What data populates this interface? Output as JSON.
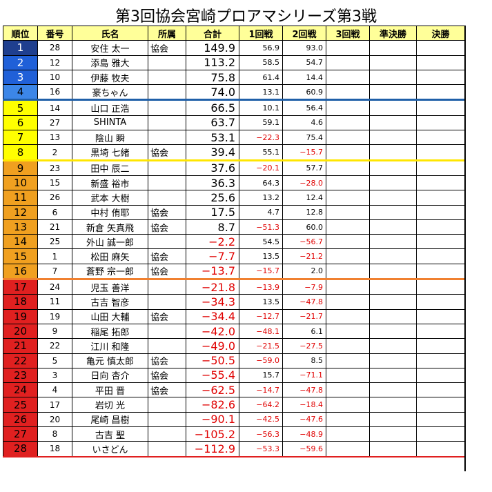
{
  "title": "第3回協会宮崎プロアマシリーズ第3戦",
  "headers": [
    "順位",
    "番号",
    "氏名",
    "所属",
    "合計",
    "1回戦",
    "2回戦",
    "3回戦",
    "準決勝",
    "決勝"
  ],
  "colors": {
    "rank_navy": "#1f3f8f",
    "rank_blue": "#2060d8",
    "rank_lightblue": "#3c86e8",
    "rank_yellow": "#ffff00",
    "rank_orange": "#f0a020",
    "rank_red": "#e02020",
    "negative_text": "#e00000",
    "header_bg": "#ffff99"
  },
  "rows": [
    {
      "rank": "1",
      "num": "28",
      "name": "安住 太一",
      "aff": "協会",
      "total": "149.9",
      "r1": "56.9",
      "r2": "93.0"
    },
    {
      "rank": "2",
      "num": "12",
      "name": "添島 雅大",
      "aff": "",
      "total": "113.2",
      "r1": "58.5",
      "r2": "54.7"
    },
    {
      "rank": "3",
      "num": "10",
      "name": "伊藤 牧夫",
      "aff": "",
      "total": "75.8",
      "r1": "61.4",
      "r2": "14.4"
    },
    {
      "rank": "4",
      "num": "16",
      "name": "豪ちゃん",
      "aff": "",
      "total": "74.0",
      "r1": "13.1",
      "r2": "60.9"
    },
    {
      "rank": "5",
      "num": "14",
      "name": "山口 正浩",
      "aff": "",
      "total": "66.5",
      "r1": "10.1",
      "r2": "56.4"
    },
    {
      "rank": "6",
      "num": "27",
      "name": "SHINTA",
      "aff": "",
      "total": "63.7",
      "r1": "59.1",
      "r2": "4.6"
    },
    {
      "rank": "7",
      "num": "13",
      "name": "陰山 瞬",
      "aff": "",
      "total": "53.1",
      "r1": "−22.3",
      "r2": "75.4"
    },
    {
      "rank": "8",
      "num": "2",
      "name": "黒埼 七緒",
      "aff": "協会",
      "total": "39.4",
      "r1": "55.1",
      "r2": "−15.7"
    },
    {
      "rank": "9",
      "num": "23",
      "name": "田中 辰二",
      "aff": "",
      "total": "37.6",
      "r1": "−20.1",
      "r2": "57.7"
    },
    {
      "rank": "10",
      "num": "15",
      "name": "新盛 裕市",
      "aff": "",
      "total": "36.3",
      "r1": "64.3",
      "r2": "−28.0"
    },
    {
      "rank": "11",
      "num": "26",
      "name": "武本 大樹",
      "aff": "",
      "total": "25.6",
      "r1": "13.2",
      "r2": "12.4"
    },
    {
      "rank": "12",
      "num": "6",
      "name": "中村 侑耶",
      "aff": "協会",
      "total": "17.5",
      "r1": "4.7",
      "r2": "12.8"
    },
    {
      "rank": "13",
      "num": "21",
      "name": "新倉 矢真飛",
      "aff": "協会",
      "total": "8.7",
      "r1": "−51.3",
      "r2": "60.0"
    },
    {
      "rank": "14",
      "num": "25",
      "name": "外山 誠一郎",
      "aff": "",
      "total": "−2.2",
      "r1": "54.5",
      "r2": "−56.7"
    },
    {
      "rank": "15",
      "num": "1",
      "name": "松田 麻矢",
      "aff": "協会",
      "total": "−7.7",
      "r1": "13.5",
      "r2": "−21.2"
    },
    {
      "rank": "16",
      "num": "7",
      "name": "蒼野 宗一郎",
      "aff": "協会",
      "total": "−13.7",
      "r1": "−15.7",
      "r2": "2.0"
    },
    {
      "rank": "17",
      "num": "24",
      "name": "児玉 善洋",
      "aff": "",
      "total": "−21.8",
      "r1": "−13.9",
      "r2": "−7.9"
    },
    {
      "rank": "18",
      "num": "11",
      "name": "古吉 智彦",
      "aff": "",
      "total": "−34.3",
      "r1": "13.5",
      "r2": "−47.8"
    },
    {
      "rank": "19",
      "num": "19",
      "name": "山田 大輔",
      "aff": "協会",
      "total": "−34.4",
      "r1": "−12.7",
      "r2": "−21.7"
    },
    {
      "rank": "20",
      "num": "9",
      "name": "稲尾 拓郎",
      "aff": "",
      "total": "−42.0",
      "r1": "−48.1",
      "r2": "6.1"
    },
    {
      "rank": "21",
      "num": "22",
      "name": "江川 和隆",
      "aff": "",
      "total": "−49.0",
      "r1": "−21.5",
      "r2": "−27.5"
    },
    {
      "rank": "22",
      "num": "5",
      "name": "亀元 慎太郎",
      "aff": "協会",
      "total": "−50.5",
      "r1": "−59.0",
      "r2": "8.5"
    },
    {
      "rank": "23",
      "num": "3",
      "name": "日向 杏介",
      "aff": "協会",
      "total": "−55.4",
      "r1": "15.7",
      "r2": "−71.1"
    },
    {
      "rank": "24",
      "num": "4",
      "name": "平田 晋",
      "aff": "協会",
      "total": "−62.5",
      "r1": "−14.7",
      "r2": "−47.8"
    },
    {
      "rank": "25",
      "num": "17",
      "name": "岩切 光",
      "aff": "",
      "total": "−82.6",
      "r1": "−64.2",
      "r2": "−18.4"
    },
    {
      "rank": "26",
      "num": "20",
      "name": "尾崎 昌樹",
      "aff": "",
      "total": "−90.1",
      "r1": "−42.5",
      "r2": "−47.6"
    },
    {
      "rank": "27",
      "num": "8",
      "name": "古吉 聖",
      "aff": "",
      "total": "−105.2",
      "r1": "−56.3",
      "r2": "−48.9"
    },
    {
      "rank": "28",
      "num": "18",
      "name": "いさどん",
      "aff": "",
      "total": "−112.9",
      "r1": "−53.3",
      "r2": "−59.6"
    }
  ]
}
